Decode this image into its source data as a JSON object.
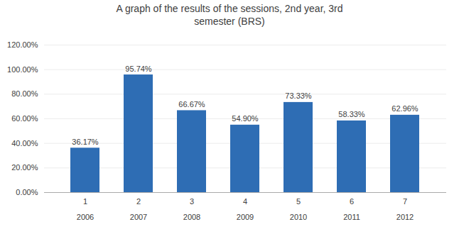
{
  "chart_data": {
    "type": "bar",
    "title": "A graph of the results of the sessions, 2nd year, 3rd\nsemester (BRS)",
    "categories": [
      "1\n\n2006",
      "2\n\n2007",
      "3\n\n2008",
      "4\n\n2009",
      "5\n\n2010",
      "6\n\n2011",
      "7\n\n2012"
    ],
    "values": [
      0.3617,
      0.9574,
      0.6667,
      0.549,
      0.7333,
      0.5833,
      0.6296
    ],
    "value_labels": [
      "36.17%",
      "95.74%",
      "66.67%",
      "54.90%",
      "73.33%",
      "58.33%",
      "62.96%"
    ],
    "data_labels": true,
    "color": "#2E6DB4",
    "ylim": [
      0,
      1.2
    ],
    "yticks": [
      {
        "value": 0.0,
        "label": "0.00%"
      },
      {
        "value": 0.2,
        "label": "20.00%"
      },
      {
        "value": 0.4,
        "label": "40.00%"
      },
      {
        "value": 0.6,
        "label": "60.00%"
      },
      {
        "value": 0.8,
        "label": "80.00%"
      },
      {
        "value": 1.0,
        "label": "100.00%"
      },
      {
        "value": 1.2,
        "label": "120.00%"
      }
    ],
    "grid": true
  }
}
